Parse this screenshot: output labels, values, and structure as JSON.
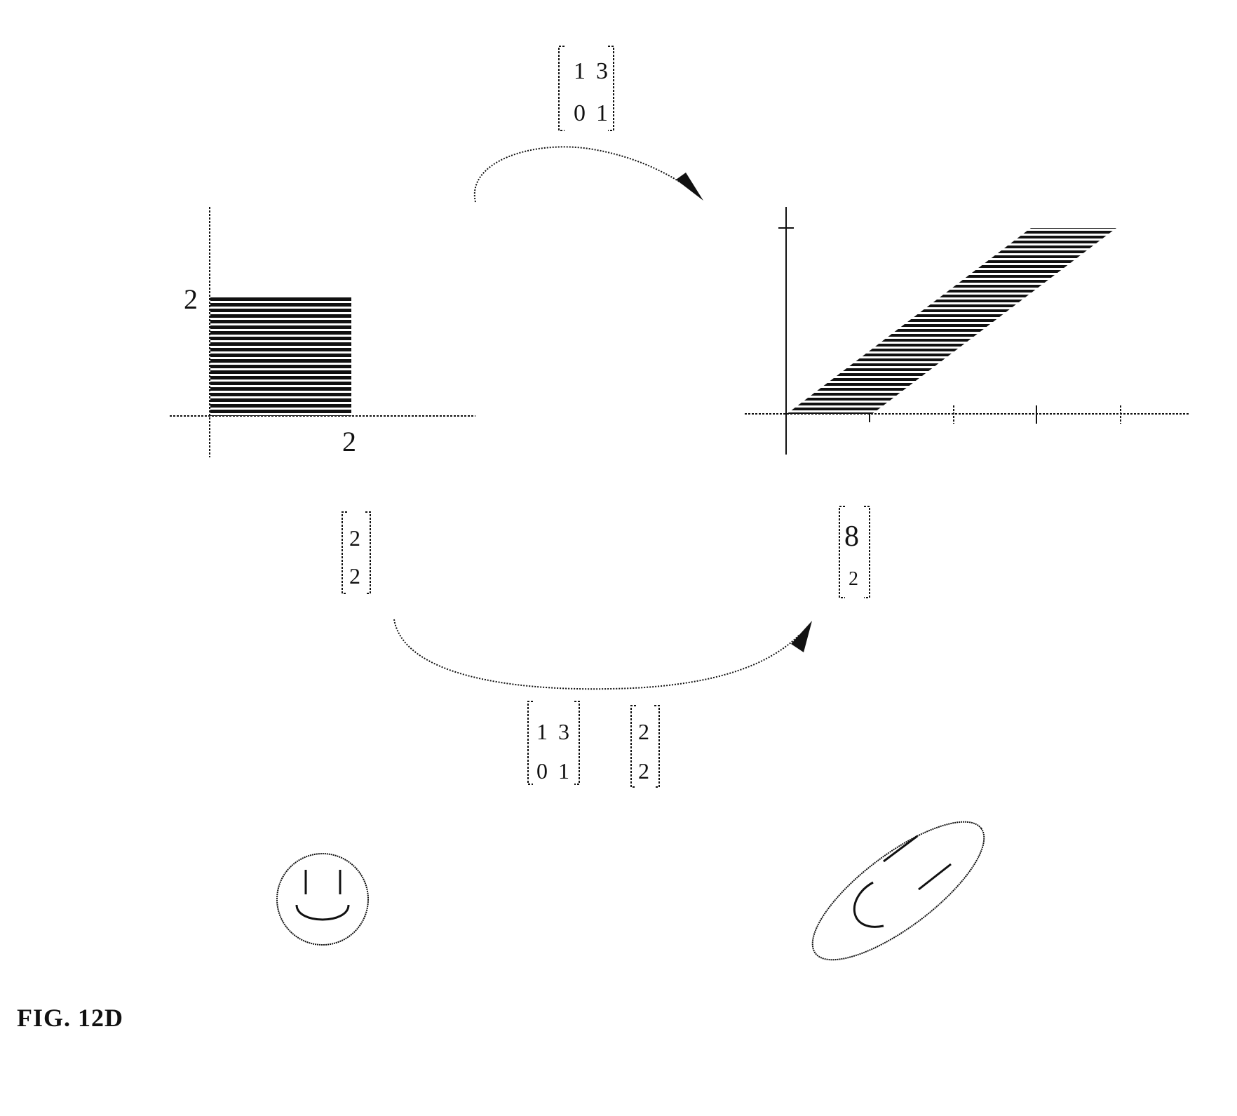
{
  "figure_label": "FIG. 12D",
  "top_matrix": {
    "r1c1": "1",
    "r1c2": "3",
    "r2c1": "0",
    "r2c2": "1"
  },
  "left_plot": {
    "y_tick_label": "2",
    "x_tick_label": "2"
  },
  "input_vector": {
    "v1": "2",
    "v2": "2"
  },
  "output_vector": {
    "v1": "8",
    "v2": "2"
  },
  "bottom_matrix": {
    "r1c1": "1",
    "r1c2": "3",
    "r2c1": "0",
    "r2c2": "1"
  },
  "bottom_vector": {
    "v1": "2",
    "v2": "2"
  },
  "colors": {
    "ink": "#111111",
    "background": "#ffffff"
  }
}
